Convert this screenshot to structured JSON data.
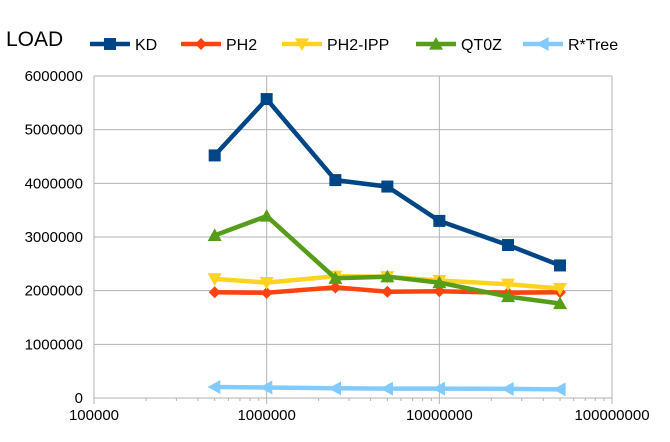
{
  "chart_data": {
    "type": "line",
    "title": "LOAD",
    "x_scale": "log",
    "xlim": [
      100000,
      100000000
    ],
    "ylim": [
      0,
      6000000
    ],
    "x_ticks": [
      "100000",
      "1000000",
      "10000000",
      "100000000"
    ],
    "y_ticks": [
      "0",
      "1000000",
      "2000000",
      "3000000",
      "4000000",
      "5000000",
      "6000000"
    ],
    "grid": true,
    "legend_position": "top",
    "x": [
      500000,
      1000000,
      2500000,
      5000000,
      10000000,
      25000000,
      50000000
    ],
    "series": [
      {
        "name": "KD",
        "color": "#004586",
        "marker": "square",
        "values": [
          4520000,
          5570000,
          4060000,
          3940000,
          3300000,
          2850000,
          2470000
        ]
      },
      {
        "name": "PH2",
        "color": "#ff420e",
        "marker": "diamond",
        "values": [
          1970000,
          1960000,
          2060000,
          1980000,
          1990000,
          1960000,
          1970000
        ]
      },
      {
        "name": "PH2-IPP",
        "color": "#ffd320",
        "marker": "triangle-down",
        "values": [
          2220000,
          2150000,
          2270000,
          2260000,
          2190000,
          2120000,
          2040000
        ]
      },
      {
        "name": "QT0Z",
        "color": "#579d1c",
        "marker": "triangle-up",
        "values": [
          3030000,
          3390000,
          2230000,
          2260000,
          2150000,
          1890000,
          1760000
        ]
      },
      {
        "name": "R*Tree",
        "color": "#83caff",
        "marker": "triangle-left",
        "values": [
          205000,
          195000,
          180000,
          175000,
          175000,
          170000,
          160000
        ]
      }
    ]
  }
}
